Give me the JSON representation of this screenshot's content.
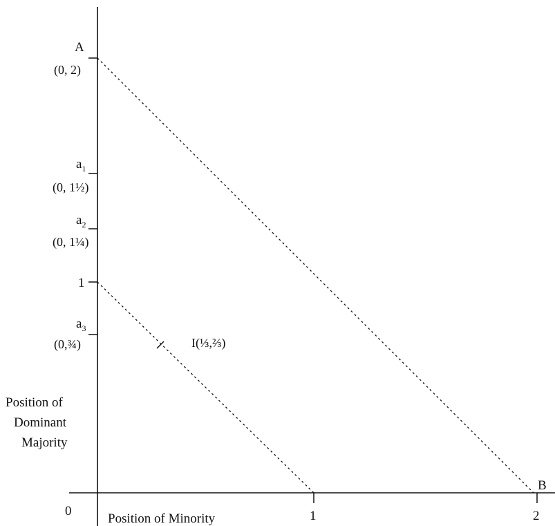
{
  "diagram": {
    "axes": {
      "y_title_lines": [
        "Position of",
        "Dominant",
        "Majority"
      ],
      "x_title": "Position of Minority",
      "origin_label": "0"
    },
    "x_ticks": [
      {
        "value": 1,
        "label": "1"
      },
      {
        "value": 2,
        "label": "2"
      }
    ],
    "y_points": [
      {
        "id": "A",
        "label": "A",
        "coord": "(0, 2)",
        "value": 2
      },
      {
        "id": "a1",
        "label": "a",
        "subscript": "1",
        "coord": "(0, 1½)",
        "value": 1.5
      },
      {
        "id": "a2",
        "label": "a",
        "subscript": "2",
        "coord": "(0, 1¼)",
        "value": 1.25
      },
      {
        "id": "one",
        "label": "1",
        "value": 1
      },
      {
        "id": "a3",
        "label": "a",
        "subscript": "3",
        "coord": "(0,¾)",
        "value": 0.75
      }
    ],
    "point_B": {
      "label": "B",
      "x": 2,
      "y": 0
    },
    "point_I": {
      "label": "I(⅓,⅔)",
      "x": 0.3333,
      "y": 0.6667
    },
    "lines": [
      {
        "id": "line-AB",
        "from": [
          0,
          2
        ],
        "to": [
          2,
          0
        ],
        "style": "dashed"
      },
      {
        "id": "line-unit",
        "from": [
          0,
          1
        ],
        "to": [
          1,
          0
        ],
        "style": "dashed"
      }
    ]
  }
}
